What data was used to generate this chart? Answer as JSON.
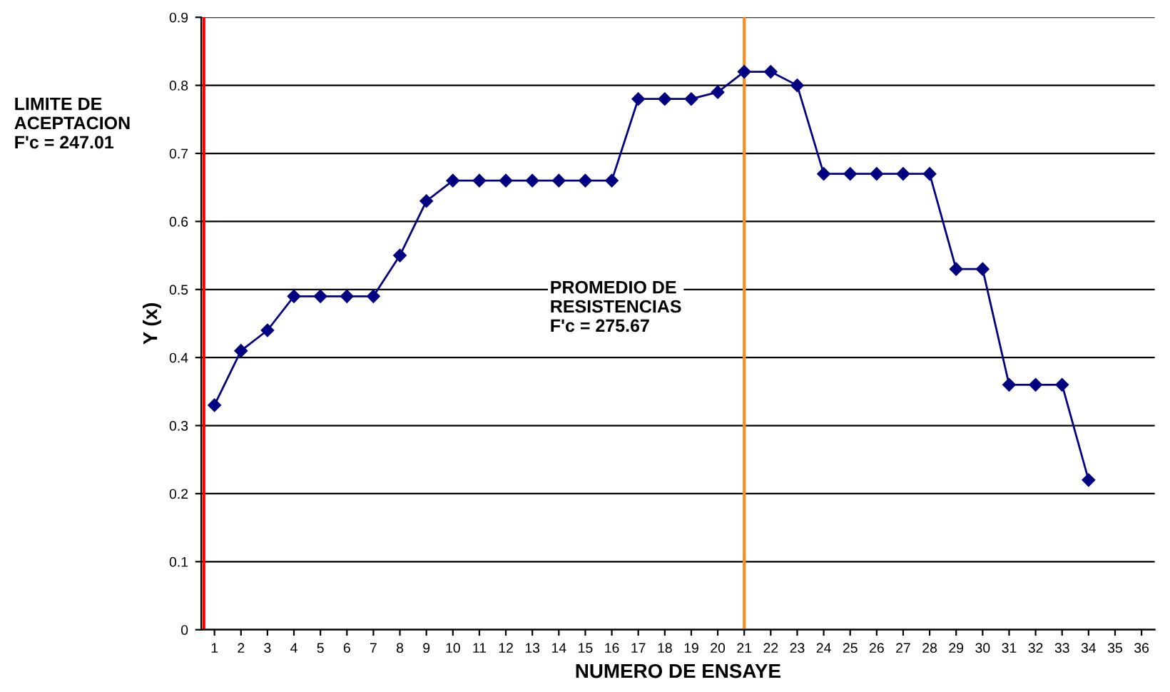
{
  "chart_data": {
    "type": "line",
    "xlabel": "NUMERO DE ENSAYE",
    "ylabel": "Y (x)",
    "x": [
      1,
      2,
      3,
      4,
      5,
      6,
      7,
      8,
      9,
      10,
      11,
      12,
      13,
      14,
      15,
      16,
      17,
      18,
      19,
      20,
      21,
      22,
      23,
      24,
      25,
      26,
      27,
      28,
      29,
      30,
      31,
      32,
      33,
      34
    ],
    "series": [
      {
        "color": "#000080",
        "values": [
          0.33,
          0.41,
          0.44,
          0.49,
          0.49,
          0.49,
          0.49,
          0.55,
          0.63,
          0.66,
          0.66,
          0.66,
          0.66,
          0.66,
          0.66,
          0.66,
          0.78,
          0.78,
          0.78,
          0.79,
          0.82,
          0.82,
          0.8,
          0.67,
          0.67,
          0.67,
          0.67,
          0.67,
          0.53,
          0.53,
          0.36,
          0.36,
          0.36,
          0.22
        ]
      }
    ],
    "xlim": [
      0.5,
      36.5
    ],
    "xticks": [
      1,
      2,
      3,
      4,
      5,
      6,
      7,
      8,
      9,
      10,
      11,
      12,
      13,
      14,
      15,
      16,
      17,
      18,
      19,
      20,
      21,
      22,
      23,
      24,
      25,
      26,
      27,
      28,
      29,
      30,
      31,
      32,
      33,
      34,
      35,
      36
    ],
    "ylim": [
      0,
      0.9
    ],
    "yticks": [
      0,
      0.1,
      0.2,
      0.3,
      0.4,
      0.5,
      0.6,
      0.7,
      0.8,
      0.9
    ],
    "grid": "y",
    "marker": "diamond",
    "line_style": "solid",
    "ref_lines": [
      {
        "axis": "x",
        "value": 0.6,
        "color": "#ff0000"
      },
      {
        "axis": "x",
        "value": 21,
        "color": "#ff8c1a"
      }
    ],
    "annotations": [
      "LIMITE DE\nACEPTACION\nF'c = 247.01",
      "PROMEDIO DE\nRESISTENCIAS\nF'c = 275.67"
    ]
  }
}
